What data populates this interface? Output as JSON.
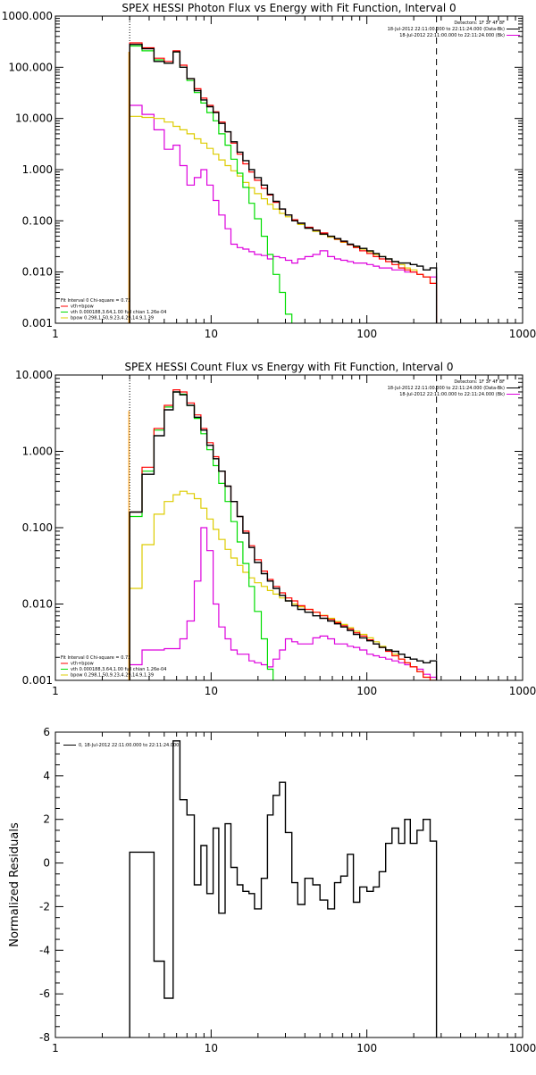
{
  "colors": {
    "data": "#000000",
    "total": "#ff0000",
    "vth": "#00dd00",
    "bpow": "#ddcc00",
    "bk": "#dd00dd",
    "orange_line": "#ff9900"
  },
  "chart_data": [
    {
      "type": "line",
      "title": "SPEX HESSI Photon Flux vs Energy with Fit Function, Interval 0",
      "xscale": "log",
      "yscale": "log",
      "xlim": [
        1,
        1000
      ],
      "ylim": [
        0.001,
        1000
      ],
      "xticks": [
        "1",
        "10",
        "100",
        "1000"
      ],
      "yticks": [
        "0.001",
        "0.010",
        "0.100",
        "1.000",
        "10.000",
        "100.000",
        "1000.000"
      ],
      "vlines": [
        {
          "x": 3,
          "style": "dotted"
        },
        {
          "x": 280,
          "style": "dashed"
        }
      ],
      "legend_top_right": [
        {
          "text": "Detectors: 1F 3F 4F 8F",
          "series": "none"
        },
        {
          "text": "18-Jul-2012 22:11:00.000 to 22:11:24.000 (Data-Bk)",
          "series": "data"
        },
        {
          "text": "18-Jul-2012 22:11:00.000 to 22:11:24.000 (Bk)",
          "series": "bk"
        }
      ],
      "legend_bottom_left": [
        {
          "text": "Fit Interval 0   Chi-square = 0.73",
          "series": "none"
        },
        {
          "text": "vth+bpow",
          "series": "total"
        },
        {
          "text": "vth 0.000188,3.64,1.00  full chian 1.26e-04",
          "series": "vth"
        },
        {
          "text": "bpow 0.298,1.50,9.23,4.29,14.9,1.39",
          "series": "bpow"
        }
      ],
      "edges": [
        3,
        3.6,
        4.3,
        5,
        5.7,
        6.3,
        7,
        7.8,
        8.6,
        9.4,
        10.3,
        11.2,
        12.3,
        13.4,
        14.7,
        16,
        17.5,
        19,
        21,
        23,
        25,
        27.5,
        30,
        33,
        36,
        40,
        45,
        50,
        56,
        62,
        68,
        75,
        82,
        90,
        100,
        110,
        120,
        132,
        145,
        160,
        175,
        190,
        210,
        230,
        255,
        280
      ],
      "series": [
        {
          "name": "",
          "key": "data",
          "values": [
            280,
            230,
            130,
            120,
            200,
            100,
            60,
            35,
            23,
            17,
            13,
            8,
            5.5,
            3.5,
            2.2,
            1.5,
            1,
            0.7,
            0.5,
            0.33,
            0.24,
            0.17,
            0.13,
            0.1,
            0.09,
            0.072,
            0.065,
            0.055,
            0.05,
            0.045,
            0.04,
            0.035,
            0.032,
            0.029,
            0.026,
            0.023,
            0.02,
            0.018,
            0.016,
            0.015,
            0.015,
            0.014,
            0.013,
            0.011,
            0.012
          ]
        },
        {
          "name": "",
          "key": "total",
          "values": [
            300,
            240,
            150,
            130,
            210,
            110,
            60,
            38,
            25,
            18,
            13.5,
            8.5,
            5.5,
            3.3,
            2,
            1.3,
            0.9,
            0.62,
            0.43,
            0.32,
            0.23,
            0.17,
            0.13,
            0.105,
            0.09,
            0.075,
            0.066,
            0.058,
            0.05,
            0.044,
            0.039,
            0.034,
            0.03,
            0.026,
            0.023,
            0.02,
            0.018,
            0.016,
            0.014,
            0.012,
            0.011,
            0.01,
            0.009,
            0.008,
            0.006
          ]
        },
        {
          "name": "",
          "key": "vth",
          "values": [
            260,
            210,
            140,
            120,
            200,
            100,
            55,
            32,
            20,
            13,
            9,
            5,
            3,
            1.6,
            0.85,
            0.45,
            0.22,
            0.11,
            0.05,
            0.022,
            0.009,
            0.004,
            0.0015,
            0.0006
          ]
        },
        {
          "name": "",
          "key": "bpow",
          "values": [
            11,
            10.5,
            10,
            8.5,
            7,
            6,
            5,
            4,
            3.3,
            2.6,
            2,
            1.55,
            1.2,
            0.95,
            0.75,
            0.56,
            0.44,
            0.34,
            0.27,
            0.21,
            0.17,
            0.14,
            0.12,
            0.1,
            0.085,
            0.072,
            0.062,
            0.054,
            0.048,
            0.043,
            0.038,
            0.034,
            0.031,
            0.028,
            0.025,
            0.022,
            0.02,
            0.018,
            0.016,
            0.014,
            0.012,
            0.011,
            0.009,
            0.008,
            0.006
          ]
        },
        {
          "name": "",
          "key": "bk",
          "values": [
            18,
            12,
            6,
            2.5,
            3,
            1.2,
            0.5,
            0.7,
            1,
            0.5,
            0.25,
            0.13,
            0.07,
            0.035,
            0.03,
            0.028,
            0.025,
            0.022,
            0.021,
            0.018,
            0.02,
            0.019,
            0.017,
            0.015,
            0.018,
            0.02,
            0.022,
            0.026,
            0.02,
            0.018,
            0.017,
            0.016,
            0.015,
            0.015,
            0.014,
            0.013,
            0.012,
            0.012,
            0.011,
            0.011,
            0.01,
            0.01,
            0.009,
            0.008,
            0.008
          ]
        }
      ]
    },
    {
      "type": "line",
      "title": "SPEX HESSI Count Flux vs Energy with Fit Function, Interval 0",
      "xscale": "log",
      "yscale": "log",
      "xlim": [
        1,
        1000
      ],
      "ylim": [
        0.001,
        10
      ],
      "xticks": [
        "1",
        "10",
        "100",
        "1000"
      ],
      "yticks": [
        "0.001",
        "0.010",
        "0.100",
        "1.000",
        "10.000"
      ],
      "vlines": [
        {
          "x": 3,
          "style": "dotted"
        },
        {
          "x": 280,
          "style": "dashed"
        }
      ],
      "legend_top_right": [
        {
          "text": "Detectors: 1F 3F 4F 8F",
          "series": "none"
        },
        {
          "text": "18-Jul-2012 22:11:00.000 to 22:11:24.000 (Data-Bk)",
          "series": "data"
        },
        {
          "text": "18-Jul-2012 22:11:00.000 to 22:11:24.000 (Bk)",
          "series": "bk"
        }
      ],
      "legend_bottom_left": [
        {
          "text": "Fit Interval 0   Chi-square = 0.73",
          "series": "none"
        },
        {
          "text": "vth+bpow",
          "series": "total"
        },
        {
          "text": "vth 0.000188,3.64,1.00  full chian 1.26e-04",
          "series": "vth"
        },
        {
          "text": "bpow 0.298,1.50,9.23,4.29,14.9,1.39",
          "series": "bpow"
        }
      ],
      "edges": [
        3,
        3.6,
        4.3,
        5,
        5.7,
        6.3,
        7,
        7.8,
        8.6,
        9.4,
        10.3,
        11.2,
        12.3,
        13.4,
        14.7,
        16,
        17.5,
        19,
        21,
        23,
        25,
        27.5,
        30,
        33,
        36,
        40,
        45,
        50,
        56,
        62,
        68,
        75,
        82,
        90,
        100,
        110,
        120,
        132,
        145,
        160,
        175,
        190,
        210,
        230,
        255,
        280
      ],
      "series": [
        {
          "name": "",
          "key": "data",
          "values": [
            0.16,
            0.5,
            1.6,
            3.5,
            6,
            5.5,
            4,
            2.8,
            1.9,
            1.2,
            0.8,
            0.55,
            0.35,
            0.22,
            0.14,
            0.085,
            0.055,
            0.035,
            0.025,
            0.02,
            0.016,
            0.013,
            0.011,
            0.0095,
            0.0085,
            0.0078,
            0.007,
            0.0065,
            0.006,
            0.0055,
            0.005,
            0.0045,
            0.004,
            0.0036,
            0.0033,
            0.003,
            0.0027,
            0.0025,
            0.0024,
            0.0022,
            0.002,
            0.0019,
            0.0018,
            0.0017,
            0.0018
          ]
        },
        {
          "name": "",
          "key": "total",
          "values": [
            0.16,
            0.62,
            2,
            4,
            6.4,
            6,
            4.3,
            3,
            2,
            1.3,
            0.85,
            0.55,
            0.35,
            0.22,
            0.14,
            0.09,
            0.058,
            0.038,
            0.027,
            0.021,
            0.017,
            0.014,
            0.012,
            0.011,
            0.0095,
            0.0085,
            0.0078,
            0.007,
            0.0063,
            0.0057,
            0.0052,
            0.0047,
            0.0042,
            0.0038,
            0.0034,
            0.003,
            0.0027,
            0.0024,
            0.0021,
            0.0019,
            0.0017,
            0.0015,
            0.0013,
            0.0011,
            0.001
          ]
        },
        {
          "name": "",
          "key": "vth",
          "values": [
            0.14,
            0.55,
            1.9,
            3.8,
            6,
            5.6,
            4,
            2.7,
            1.7,
            1.05,
            0.65,
            0.38,
            0.22,
            0.12,
            0.065,
            0.034,
            0.017,
            0.008,
            0.0035,
            0.0014,
            0.0005
          ]
        },
        {
          "name": "",
          "key": "bpow",
          "values": [
            0.016,
            0.06,
            0.15,
            0.22,
            0.27,
            0.3,
            0.28,
            0.24,
            0.18,
            0.13,
            0.095,
            0.07,
            0.052,
            0.04,
            0.032,
            0.026,
            0.022,
            0.019,
            0.017,
            0.015,
            0.0135,
            0.012,
            0.011,
            0.01,
            0.0092,
            0.0085,
            0.0078,
            0.0071,
            0.0065,
            0.0059,
            0.0054,
            0.0049,
            0.0044,
            0.004,
            0.0036,
            0.0032,
            0.0028,
            0.0025,
            0.0022,
            0.0019,
            0.0017,
            0.0015,
            0.0013,
            0.0011,
            0.001
          ]
        },
        {
          "name": "",
          "key": "bk",
          "values": [
            0.0016,
            0.0025,
            0.0025,
            0.0026,
            0.0026,
            0.0035,
            0.006,
            0.02,
            0.1,
            0.05,
            0.01,
            0.005,
            0.0035,
            0.0025,
            0.0022,
            0.0022,
            0.0018,
            0.0017,
            0.0016,
            0.0015,
            0.0019,
            0.0025,
            0.0035,
            0.0032,
            0.003,
            0.003,
            0.0036,
            0.0038,
            0.0035,
            0.003,
            0.003,
            0.0028,
            0.0027,
            0.0025,
            0.0022,
            0.0021,
            0.002,
            0.0019,
            0.0018,
            0.0017,
            0.0016,
            0.0015,
            0.0014,
            0.0012,
            0.0011
          ]
        }
      ]
    },
    {
      "type": "line",
      "title": "",
      "xscale": "log",
      "yscale": "linear",
      "xlim": [
        1,
        1000
      ],
      "ylim": [
        -8,
        6
      ],
      "ylabel": "Normalized Residuals",
      "xticks": [
        "1",
        "10",
        "100",
        "1000"
      ],
      "yticks": [
        "-8",
        "-6",
        "-4",
        "-2",
        "0",
        "2",
        "4",
        "6"
      ],
      "legend_top_left": [
        {
          "text": "0, 18-Jul-2012 22:11:00.000 to 22:11:24.000",
          "series": "data"
        }
      ],
      "edges": [
        3,
        3.6,
        4.3,
        5,
        5.7,
        6.3,
        7,
        7.8,
        8.6,
        9.4,
        10.3,
        11.2,
        12.3,
        13.4,
        14.7,
        16,
        17.5,
        19,
        21,
        23,
        25,
        27.5,
        30,
        33,
        36,
        40,
        45,
        50,
        56,
        62,
        68,
        75,
        82,
        90,
        100,
        110,
        120,
        132,
        145,
        160,
        175,
        190,
        210,
        230,
        255,
        280
      ],
      "series": [
        {
          "name": "",
          "key": "data",
          "values": [
            0.5,
            0.5,
            -4.5,
            -6.2,
            5.6,
            2.9,
            2.2,
            -1,
            0.8,
            -1.4,
            1.6,
            -2.3,
            1.8,
            -0.2,
            -1,
            -1.3,
            -1.4,
            -2.1,
            -0.7,
            2.2,
            3.1,
            3.7,
            1.4,
            -0.9,
            -1.9,
            -0.7,
            -1,
            -1.7,
            -2.1,
            -0.9,
            -0.6,
            0.4,
            -1.8,
            -1.1,
            -1.3,
            -1.1,
            -0.4,
            0.9,
            1.6,
            0.9,
            2,
            0.9,
            1.5,
            2,
            1
          ]
        }
      ]
    }
  ]
}
